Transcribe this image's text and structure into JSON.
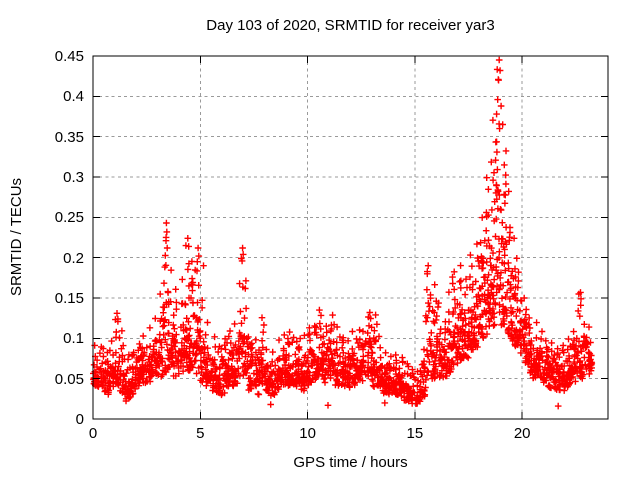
{
  "chart_data": {
    "type": "scatter",
    "title": "Day 103 of 2020, SRMTID for receiver yar3",
    "xlabel": "GPS time / hours",
    "ylabel": "SRMTID / TECUs",
    "xlim": [
      0,
      24
    ],
    "ylim": [
      0,
      0.45
    ],
    "xticks": [
      0,
      5,
      10,
      15,
      20
    ],
    "xtick_labels": [
      "0",
      "5",
      "10",
      "15",
      "20"
    ],
    "yticks": [
      0,
      0.05,
      0.1,
      0.15,
      0.2,
      0.25,
      0.3,
      0.35,
      0.4,
      0.45
    ],
    "ytick_labels": [
      "0",
      "0.05",
      "0.1",
      "0.15",
      "0.2",
      "0.25",
      "0.3",
      "0.35",
      "0.4",
      "0.45"
    ],
    "grid": true,
    "legend": "none",
    "marker": "plus",
    "colors": {
      "points": "#ff0000",
      "grid": "#9a9a9a",
      "axis": "#000000",
      "text": "#000000",
      "background": "#ffffff"
    },
    "envelope": {
      "description": "Per 0.25 h bin: [start_hour, min_value, max_value, optional_point_count]; dense scatter of + markers fills each bin from min up toward max",
      "bin_width_hours": 0.25,
      "points_per_bin": 24,
      "bins": [
        [
          0.0,
          0.04,
          0.095
        ],
        [
          0.25,
          0.04,
          0.09
        ],
        [
          0.5,
          0.03,
          0.085
        ],
        [
          0.75,
          0.04,
          0.1
        ],
        [
          1.0,
          0.04,
          0.125
        ],
        [
          1.25,
          0.03,
          0.115
        ],
        [
          1.5,
          0.022,
          0.08
        ],
        [
          1.75,
          0.03,
          0.085
        ],
        [
          2.0,
          0.04,
          0.095
        ],
        [
          2.25,
          0.04,
          0.105
        ],
        [
          2.5,
          0.045,
          0.115
        ],
        [
          2.75,
          0.05,
          0.13
        ],
        [
          3.0,
          0.05,
          0.16
        ],
        [
          3.25,
          0.055,
          0.235,
          28
        ],
        [
          3.5,
          0.06,
          0.19
        ],
        [
          3.75,
          0.05,
          0.165
        ],
        [
          4.0,
          0.055,
          0.175
        ],
        [
          4.25,
          0.06,
          0.215,
          28
        ],
        [
          4.5,
          0.06,
          0.2,
          28
        ],
        [
          4.75,
          0.055,
          0.205,
          28
        ],
        [
          5.0,
          0.045,
          0.15
        ],
        [
          5.25,
          0.04,
          0.12
        ],
        [
          5.5,
          0.035,
          0.105
        ],
        [
          5.75,
          0.03,
          0.09
        ],
        [
          6.0,
          0.032,
          0.1
        ],
        [
          6.25,
          0.038,
          0.11
        ],
        [
          6.5,
          0.04,
          0.12
        ],
        [
          6.75,
          0.05,
          0.205
        ],
        [
          7.0,
          0.05,
          0.18
        ],
        [
          7.25,
          0.035,
          0.095
        ],
        [
          7.5,
          0.03,
          0.1
        ],
        [
          7.75,
          0.04,
          0.13
        ],
        [
          8.0,
          0.03,
          0.09
        ],
        [
          8.25,
          0.028,
          0.085
        ],
        [
          8.5,
          0.035,
          0.1
        ],
        [
          8.75,
          0.04,
          0.105
        ],
        [
          9.0,
          0.04,
          0.11
        ],
        [
          9.25,
          0.04,
          0.105
        ],
        [
          9.5,
          0.035,
          0.1
        ],
        [
          9.75,
          0.035,
          0.105
        ],
        [
          10.0,
          0.04,
          0.115
        ],
        [
          10.25,
          0.045,
          0.12
        ],
        [
          10.5,
          0.05,
          0.13
        ],
        [
          10.75,
          0.045,
          0.12
        ],
        [
          11.0,
          0.05,
          0.13
        ],
        [
          11.25,
          0.04,
          0.115
        ],
        [
          11.5,
          0.04,
          0.105
        ],
        [
          11.75,
          0.038,
          0.1
        ],
        [
          12.0,
          0.04,
          0.11
        ],
        [
          12.25,
          0.042,
          0.115
        ],
        [
          12.5,
          0.045,
          0.11
        ],
        [
          12.75,
          0.05,
          0.13
        ],
        [
          13.0,
          0.04,
          0.13
        ],
        [
          13.25,
          0.04,
          0.105
        ],
        [
          13.5,
          0.032,
          0.085
        ],
        [
          13.75,
          0.03,
          0.08
        ],
        [
          14.0,
          0.03,
          0.08
        ],
        [
          14.25,
          0.028,
          0.078
        ],
        [
          14.5,
          0.022,
          0.07
        ],
        [
          14.75,
          0.018,
          0.062,
          18
        ],
        [
          15.0,
          0.018,
          0.06,
          18
        ],
        [
          15.25,
          0.028,
          0.09
        ],
        [
          15.5,
          0.04,
          0.185
        ],
        [
          15.75,
          0.05,
          0.175
        ],
        [
          16.0,
          0.05,
          0.15
        ],
        [
          16.25,
          0.05,
          0.125
        ],
        [
          16.5,
          0.055,
          0.16
        ],
        [
          16.75,
          0.065,
          0.185,
          28
        ],
        [
          17.0,
          0.07,
          0.195,
          28
        ],
        [
          17.25,
          0.075,
          0.18,
          28
        ],
        [
          17.5,
          0.08,
          0.205,
          28
        ],
        [
          17.75,
          0.085,
          0.22,
          28
        ],
        [
          18.0,
          0.095,
          0.26,
          30
        ],
        [
          18.25,
          0.1,
          0.31,
          34
        ],
        [
          18.5,
          0.115,
          0.38,
          36
        ],
        [
          18.75,
          0.13,
          0.44,
          36
        ],
        [
          19.0,
          0.115,
          0.37,
          34
        ],
        [
          19.25,
          0.1,
          0.285,
          30
        ],
        [
          19.5,
          0.09,
          0.225,
          28
        ],
        [
          19.75,
          0.08,
          0.185
        ],
        [
          20.0,
          0.06,
          0.15
        ],
        [
          20.25,
          0.055,
          0.13
        ],
        [
          20.5,
          0.05,
          0.12
        ],
        [
          20.75,
          0.048,
          0.11
        ],
        [
          21.0,
          0.04,
          0.1
        ],
        [
          21.25,
          0.038,
          0.095
        ],
        [
          21.5,
          0.032,
          0.09
        ],
        [
          21.75,
          0.035,
          0.095
        ],
        [
          22.0,
          0.04,
          0.1
        ],
        [
          22.25,
          0.045,
          0.11
        ],
        [
          22.5,
          0.05,
          0.155
        ],
        [
          22.75,
          0.05,
          0.12
        ],
        [
          23.0,
          0.055,
          0.115
        ]
      ],
      "extra_points": [
        [
          18.93,
          0.445
        ],
        [
          18.97,
          0.432
        ],
        [
          18.9,
          0.42
        ],
        [
          18.86,
          0.396
        ],
        [
          19.02,
          0.388
        ],
        [
          18.81,
          0.378
        ],
        [
          18.95,
          0.36
        ],
        [
          3.42,
          0.243
        ],
        [
          3.44,
          0.232
        ],
        [
          3.4,
          0.221
        ],
        [
          3.46,
          0.212
        ],
        [
          4.42,
          0.224
        ],
        [
          4.46,
          0.214
        ],
        [
          4.9,
          0.212
        ],
        [
          4.93,
          0.202
        ],
        [
          6.97,
          0.212
        ],
        [
          7.0,
          0.204
        ],
        [
          6.95,
          0.196
        ],
        [
          5.15,
          0.19
        ],
        [
          15.62,
          0.19
        ],
        [
          15.58,
          0.18
        ],
        [
          22.72,
          0.157
        ],
        [
          22.74,
          0.149
        ],
        [
          22.73,
          0.141
        ],
        [
          1.12,
          0.131
        ],
        [
          1.16,
          0.124
        ],
        [
          10.55,
          0.135
        ],
        [
          12.9,
          0.132
        ],
        [
          21.68,
          0.016
        ],
        [
          8.28,
          0.018
        ],
        [
          10.95,
          0.017
        ],
        [
          13.6,
          0.02
        ],
        [
          15.05,
          0.019
        ]
      ]
    }
  }
}
